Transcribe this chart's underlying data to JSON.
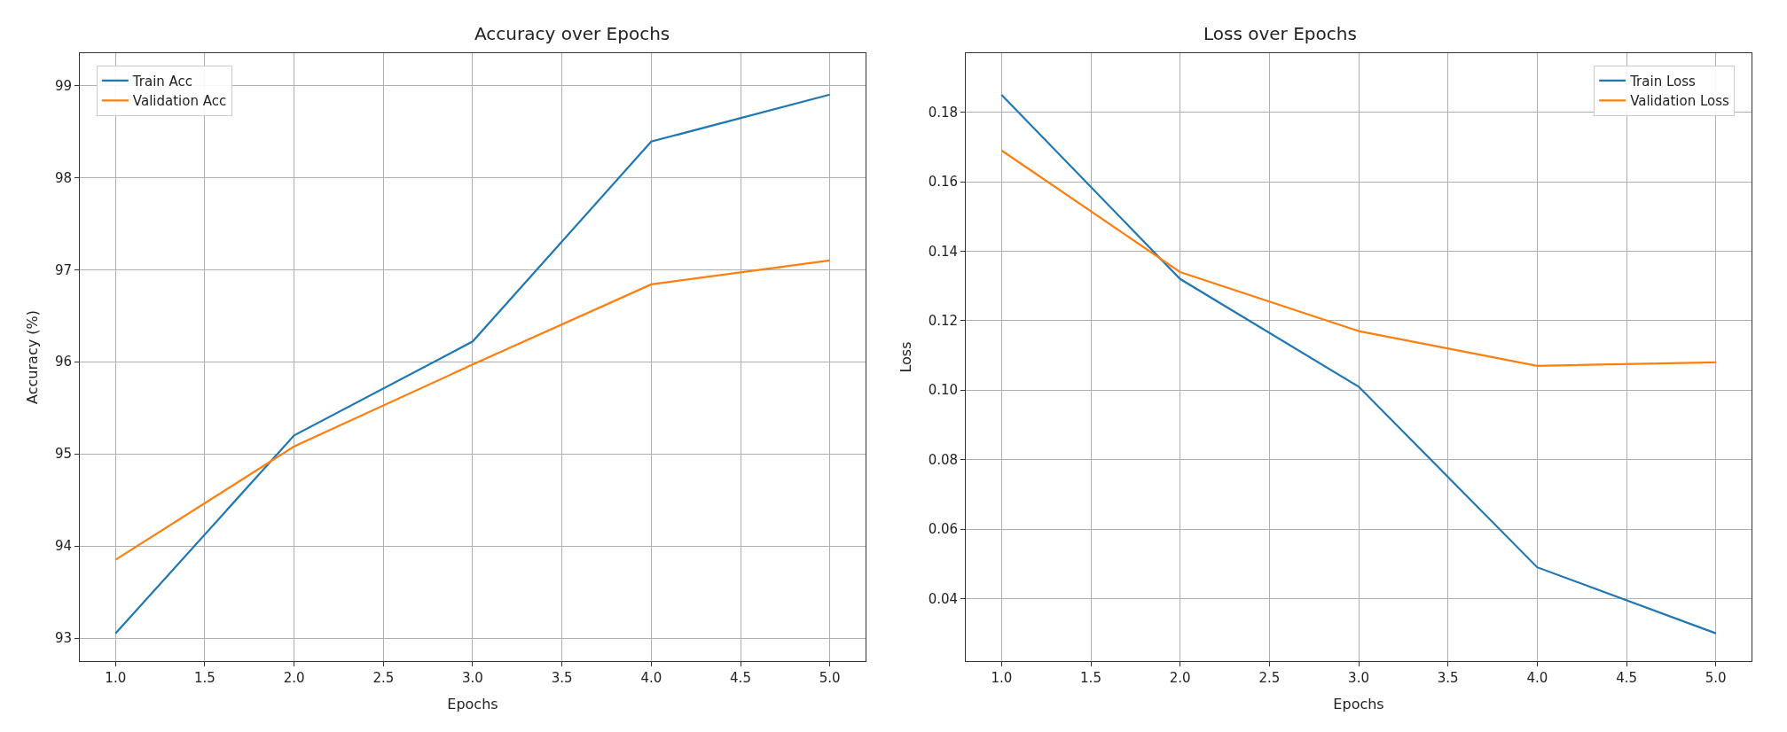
{
  "chart_data": [
    {
      "type": "line",
      "title": "Accuracy over Epochs",
      "xlabel": "Epochs",
      "ylabel": "Accuracy (%)",
      "x": [
        1,
        2,
        3,
        4,
        5
      ],
      "series": [
        {
          "name": "Train Acc",
          "color": "#1f77b4",
          "values": [
            93.05,
            95.2,
            96.22,
            98.39,
            98.9
          ]
        },
        {
          "name": "Validation Acc",
          "color": "#ff7f0e",
          "values": [
            93.85,
            95.08,
            95.97,
            96.84,
            97.1
          ]
        }
      ],
      "xlim": [
        0.8,
        5.2
      ],
      "xticks": [
        {
          "value": 1,
          "label": "1.0"
        },
        {
          "value": 1.5,
          "label": "1.5"
        },
        {
          "value": 2,
          "label": "2.0"
        },
        {
          "value": 2.5,
          "label": "2.5"
        },
        {
          "value": 3,
          "label": "3.0"
        },
        {
          "value": 3.5,
          "label": "3.5"
        },
        {
          "value": 4,
          "label": "4.0"
        },
        {
          "value": 4.5,
          "label": "4.5"
        },
        {
          "value": 5,
          "label": "5.0"
        }
      ],
      "ylim": [
        92.75,
        99.35
      ],
      "yticks": [
        93,
        94,
        95,
        96,
        97,
        98,
        99
      ],
      "grid": true,
      "legend": "top left"
    },
    {
      "type": "line",
      "title": "Loss over Epochs",
      "xlabel": "Epochs",
      "ylabel": "Loss",
      "x": [
        1,
        2,
        3,
        4,
        5
      ],
      "series": [
        {
          "name": "Train Loss",
          "color": "#1f77b4",
          "values": [
            0.185,
            0.132,
            0.101,
            0.049,
            0.03
          ]
        },
        {
          "name": "Validation Loss",
          "color": "#ff7f0e",
          "values": [
            0.169,
            0.134,
            0.117,
            0.107,
            0.108
          ]
        }
      ],
      "xlim": [
        0.8,
        5.2
      ],
      "xticks": [
        {
          "value": 1,
          "label": "1.0"
        },
        {
          "value": 1.5,
          "label": "1.5"
        },
        {
          "value": 2,
          "label": "2.0"
        },
        {
          "value": 2.5,
          "label": "2.5"
        },
        {
          "value": 3,
          "label": "3.0"
        },
        {
          "value": 3.5,
          "label": "3.5"
        },
        {
          "value": 4,
          "label": "4.0"
        },
        {
          "value": 4.5,
          "label": "4.5"
        },
        {
          "value": 5,
          "label": "5.0"
        }
      ],
      "ylim": [
        0.022,
        0.197
      ],
      "yticks": [
        {
          "value": 0.04,
          "label": "0.04"
        },
        {
          "value": 0.06,
          "label": "0.06"
        },
        {
          "value": 0.08,
          "label": "0.08"
        },
        {
          "value": 0.1,
          "label": "0.10"
        },
        {
          "value": 0.12,
          "label": "0.12"
        },
        {
          "value": 0.14,
          "label": "0.14"
        },
        {
          "value": 0.16,
          "label": "0.16"
        },
        {
          "value": 0.18,
          "label": "0.18"
        }
      ],
      "grid": true,
      "legend": "top right"
    }
  ]
}
